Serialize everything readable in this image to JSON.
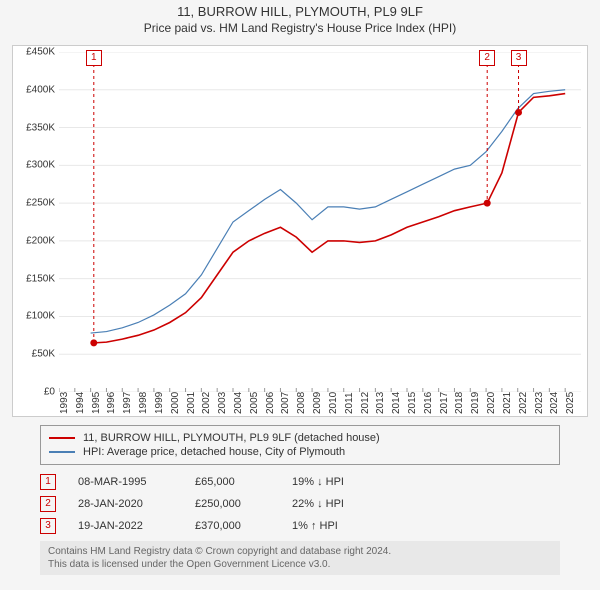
{
  "title": "11, BURROW HILL, PLYMOUTH, PL9 9LF",
  "subtitle": "Price paid vs. HM Land Registry's House Price Index (HPI)",
  "chart": {
    "type": "line",
    "background_color": "#ffffff",
    "grid_color": "#e8e8e8",
    "x": {
      "min": 1993,
      "max": 2026,
      "ticks": [
        1993,
        1994,
        1995,
        1996,
        1997,
        1998,
        1999,
        2000,
        2001,
        2002,
        2003,
        2004,
        2005,
        2006,
        2007,
        2008,
        2009,
        2010,
        2011,
        2012,
        2013,
        2014,
        2015,
        2016,
        2017,
        2018,
        2019,
        2020,
        2021,
        2022,
        2023,
        2024,
        2025
      ]
    },
    "y": {
      "min": 0,
      "max": 450000,
      "ticks": [
        0,
        50000,
        100000,
        150000,
        200000,
        250000,
        300000,
        350000,
        400000,
        450000
      ],
      "labels": [
        "£0",
        "£50K",
        "£100K",
        "£150K",
        "£200K",
        "£250K",
        "£300K",
        "£350K",
        "£400K",
        "£450K"
      ]
    },
    "series": [
      {
        "name": "price_paid",
        "color": "#cc0000",
        "width": 1.6,
        "points": [
          [
            1995.2,
            65000
          ],
          [
            1996,
            66000
          ],
          [
            1997,
            70000
          ],
          [
            1998,
            75000
          ],
          [
            1999,
            82000
          ],
          [
            2000,
            92000
          ],
          [
            2001,
            105000
          ],
          [
            2002,
            125000
          ],
          [
            2003,
            155000
          ],
          [
            2004,
            185000
          ],
          [
            2005,
            200000
          ],
          [
            2006,
            210000
          ],
          [
            2007,
            218000
          ],
          [
            2008,
            205000
          ],
          [
            2009,
            185000
          ],
          [
            2010,
            200000
          ],
          [
            2011,
            200000
          ],
          [
            2012,
            198000
          ],
          [
            2013,
            200000
          ],
          [
            2014,
            208000
          ],
          [
            2015,
            218000
          ],
          [
            2016,
            225000
          ],
          [
            2017,
            232000
          ],
          [
            2018,
            240000
          ],
          [
            2019,
            245000
          ],
          [
            2020.07,
            250000
          ],
          [
            2021,
            290000
          ],
          [
            2022.05,
            370000
          ],
          [
            2023,
            390000
          ],
          [
            2024,
            392000
          ],
          [
            2025,
            395000
          ]
        ]
      },
      {
        "name": "hpi",
        "color": "#4a7fb5",
        "width": 1.2,
        "points": [
          [
            1995,
            78000
          ],
          [
            1996,
            80000
          ],
          [
            1997,
            85000
          ],
          [
            1998,
            92000
          ],
          [
            1999,
            102000
          ],
          [
            2000,
            115000
          ],
          [
            2001,
            130000
          ],
          [
            2002,
            155000
          ],
          [
            2003,
            190000
          ],
          [
            2004,
            225000
          ],
          [
            2005,
            240000
          ],
          [
            2006,
            255000
          ],
          [
            2007,
            268000
          ],
          [
            2008,
            250000
          ],
          [
            2009,
            228000
          ],
          [
            2010,
            245000
          ],
          [
            2011,
            245000
          ],
          [
            2012,
            242000
          ],
          [
            2013,
            245000
          ],
          [
            2014,
            255000
          ],
          [
            2015,
            265000
          ],
          [
            2016,
            275000
          ],
          [
            2017,
            285000
          ],
          [
            2018,
            295000
          ],
          [
            2019,
            300000
          ],
          [
            2020,
            318000
          ],
          [
            2021,
            345000
          ],
          [
            2022,
            375000
          ],
          [
            2023,
            395000
          ],
          [
            2024,
            398000
          ],
          [
            2025,
            400000
          ]
        ]
      }
    ],
    "markers": [
      {
        "n": "1",
        "x": 1995.2,
        "y": 65000
      },
      {
        "n": "2",
        "x": 2020.07,
        "y": 250000
      },
      {
        "n": "3",
        "x": 2022.05,
        "y": 370000
      }
    ],
    "marker_color": "#cc0000",
    "dot_radius": 3.5
  },
  "legend": {
    "series1": {
      "color": "#cc0000",
      "label": "11, BURROW HILL, PLYMOUTH, PL9 9LF (detached house)"
    },
    "series2": {
      "color": "#4a7fb5",
      "label": "HPI: Average price, detached house, City of Plymouth"
    }
  },
  "events": [
    {
      "n": "1",
      "date": "08-MAR-1995",
      "price": "£65,000",
      "rel": "19% ↓ HPI"
    },
    {
      "n": "2",
      "date": "28-JAN-2020",
      "price": "£250,000",
      "rel": "22% ↓ HPI"
    },
    {
      "n": "3",
      "date": "19-JAN-2022",
      "price": "£370,000",
      "rel": "1% ↑ HPI"
    }
  ],
  "footer": {
    "line1": "Contains HM Land Registry data © Crown copyright and database right 2024.",
    "line2": "This data is licensed under the Open Government Licence v3.0."
  }
}
